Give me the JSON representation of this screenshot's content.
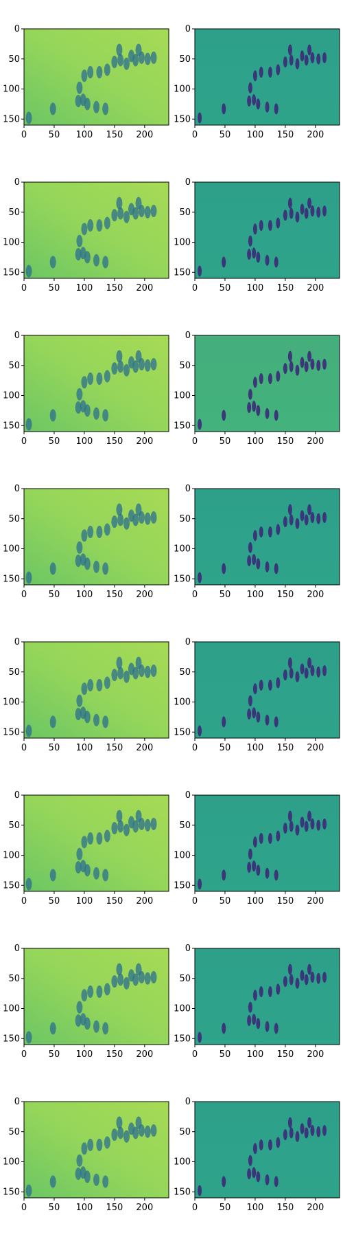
{
  "figure": {
    "background": "#ffffff",
    "layout": "8 rows x 2 columns of image panels"
  },
  "chart_data": [
    {
      "type": "heatmap",
      "panel": "row1-left",
      "colormap": "viridis",
      "description": "blurred reconstruction",
      "xlim": [
        0,
        240
      ],
      "ylim": [
        160,
        0
      ],
      "xticks": [
        0,
        50,
        100,
        150,
        200
      ],
      "yticks": [
        0,
        50,
        100,
        150
      ],
      "dominant_color": "#8fd35b"
    },
    {
      "type": "heatmap",
      "panel": "row1-right",
      "colormap": "viridis",
      "description": "sharp image",
      "xlim": [
        0,
        240
      ],
      "ylim": [
        160,
        0
      ],
      "xticks": [
        0,
        50,
        100,
        150,
        200
      ],
      "yticks": [
        0,
        50,
        100,
        150
      ],
      "dominant_color": "#2fa28a"
    },
    {
      "type": "heatmap",
      "panel": "row2-left",
      "colormap": "viridis",
      "xlim": [
        0,
        240
      ],
      "ylim": [
        160,
        0
      ],
      "xticks": [
        0,
        50,
        100,
        150,
        200
      ],
      "yticks": [
        0,
        50,
        100,
        150
      ],
      "dominant_color": "#8fd35b"
    },
    {
      "type": "heatmap",
      "panel": "row2-right",
      "colormap": "viridis",
      "xlim": [
        0,
        240
      ],
      "ylim": [
        160,
        0
      ],
      "xticks": [
        0,
        50,
        100,
        150,
        200
      ],
      "yticks": [
        0,
        50,
        100,
        150
      ],
      "dominant_color": "#2fa28a"
    },
    {
      "type": "heatmap",
      "panel": "row3-left",
      "colormap": "viridis",
      "xlim": [
        0,
        240
      ],
      "ylim": [
        160,
        0
      ],
      "xticks": [
        0,
        50,
        100,
        150,
        200
      ],
      "yticks": [
        0,
        50,
        100,
        150
      ],
      "dominant_color": "#8fd35b"
    },
    {
      "type": "heatmap",
      "panel": "row3-right",
      "colormap": "viridis",
      "xlim": [
        0,
        240
      ],
      "ylim": [
        160,
        0
      ],
      "xticks": [
        0,
        50,
        100,
        150,
        200
      ],
      "yticks": [
        0,
        50,
        100,
        150
      ],
      "dominant_color": "#5fc26a"
    },
    {
      "type": "heatmap",
      "panel": "row4-left",
      "colormap": "viridis",
      "xlim": [
        0,
        240
      ],
      "ylim": [
        160,
        0
      ],
      "xticks": [
        0,
        50,
        100,
        150,
        200
      ],
      "yticks": [
        0,
        50,
        100,
        150
      ],
      "dominant_color": "#8fd35b"
    },
    {
      "type": "heatmap",
      "panel": "row4-right",
      "colormap": "viridis",
      "xlim": [
        0,
        240
      ],
      "ylim": [
        160,
        0
      ],
      "xticks": [
        0,
        50,
        100,
        150,
        200
      ],
      "yticks": [
        0,
        50,
        100,
        150
      ],
      "dominant_color": "#2fa28a"
    },
    {
      "type": "heatmap",
      "panel": "row5-left",
      "colormap": "viridis",
      "xlim": [
        0,
        240
      ],
      "ylim": [
        160,
        0
      ],
      "xticks": [
        0,
        50,
        100,
        150,
        200
      ],
      "yticks": [
        0,
        50,
        100,
        150
      ],
      "dominant_color": "#8fd35b"
    },
    {
      "type": "heatmap",
      "panel": "row5-right",
      "colormap": "viridis",
      "xlim": [
        0,
        240
      ],
      "ylim": [
        160,
        0
      ],
      "xticks": [
        0,
        50,
        100,
        150,
        200
      ],
      "yticks": [
        0,
        50,
        100,
        150
      ],
      "dominant_color": "#2fa28a"
    },
    {
      "type": "heatmap",
      "panel": "row6-left",
      "colormap": "viridis",
      "xlim": [
        0,
        240
      ],
      "ylim": [
        160,
        0
      ],
      "xticks": [
        0,
        50,
        100,
        150,
        200
      ],
      "yticks": [
        0,
        50,
        100,
        150
      ],
      "dominant_color": "#8fd35b"
    },
    {
      "type": "heatmap",
      "panel": "row6-right",
      "colormap": "viridis",
      "xlim": [
        0,
        240
      ],
      "ylim": [
        160,
        0
      ],
      "xticks": [
        0,
        50,
        100,
        150,
        200
      ],
      "yticks": [
        0,
        50,
        100,
        150
      ],
      "dominant_color": "#2fa28a"
    },
    {
      "type": "heatmap",
      "panel": "row7-left",
      "colormap": "viridis",
      "xlim": [
        0,
        240
      ],
      "ylim": [
        160,
        0
      ],
      "xticks": [
        0,
        50,
        100,
        150,
        200
      ],
      "yticks": [
        0,
        50,
        100,
        150
      ],
      "dominant_color": "#7fcc5e"
    },
    {
      "type": "heatmap",
      "panel": "row7-right",
      "colormap": "viridis",
      "xlim": [
        0,
        240
      ],
      "ylim": [
        160,
        0
      ],
      "xticks": [
        0,
        50,
        100,
        150,
        200
      ],
      "yticks": [
        0,
        50,
        100,
        150
      ],
      "dominant_color": "#2fa28a"
    },
    {
      "type": "heatmap",
      "panel": "row8-left",
      "colormap": "viridis",
      "xlim": [
        0,
        240
      ],
      "ylim": [
        160,
        0
      ],
      "xticks": [
        0,
        50,
        100,
        150,
        200
      ],
      "yticks": [
        0,
        50,
        100,
        150
      ],
      "dominant_color": "#8fd35b"
    },
    {
      "type": "heatmap",
      "panel": "row8-right",
      "colormap": "viridis",
      "xlim": [
        0,
        240
      ],
      "ylim": [
        160,
        0
      ],
      "xticks": [
        0,
        50,
        100,
        150,
        200
      ],
      "yticks": [
        0,
        50,
        100,
        150
      ],
      "dominant_color": "#2fa28a"
    }
  ]
}
